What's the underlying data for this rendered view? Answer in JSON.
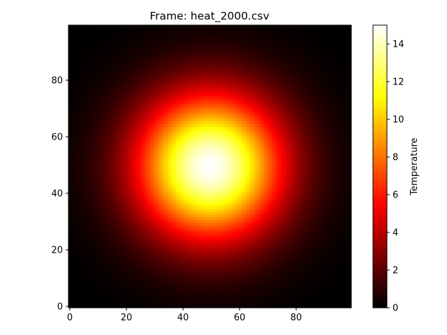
{
  "chart_data": {
    "type": "heatmap",
    "title": "Frame: heat_2000.csv",
    "xlabel": "",
    "ylabel": "",
    "grid_size": [
      100,
      100
    ],
    "xlim": [
      -0.5,
      99.5
    ],
    "ylim": [
      -0.5,
      99.5
    ],
    "x_ticks": [
      0,
      20,
      40,
      60,
      80
    ],
    "y_ticks": [
      0,
      20,
      40,
      60,
      80
    ],
    "x_tick_labels": [
      "0",
      "20",
      "40",
      "60",
      "80"
    ],
    "y_tick_labels": [
      "0",
      "20",
      "40",
      "60",
      "80"
    ],
    "origin": "lower",
    "colormap": "hot",
    "field": {
      "shape": "gaussian",
      "center": [
        49.5,
        49.5
      ],
      "peak": 15.0,
      "sigma": 18
    },
    "colorbar": {
      "label": "Temperature",
      "vmin": 0,
      "vmax": 15,
      "ticks": [
        0,
        2,
        4,
        6,
        8,
        10,
        12,
        14
      ],
      "tick_labels": [
        "0",
        "2",
        "4",
        "6",
        "8",
        "10",
        "12",
        "14"
      ]
    },
    "grid": false
  }
}
